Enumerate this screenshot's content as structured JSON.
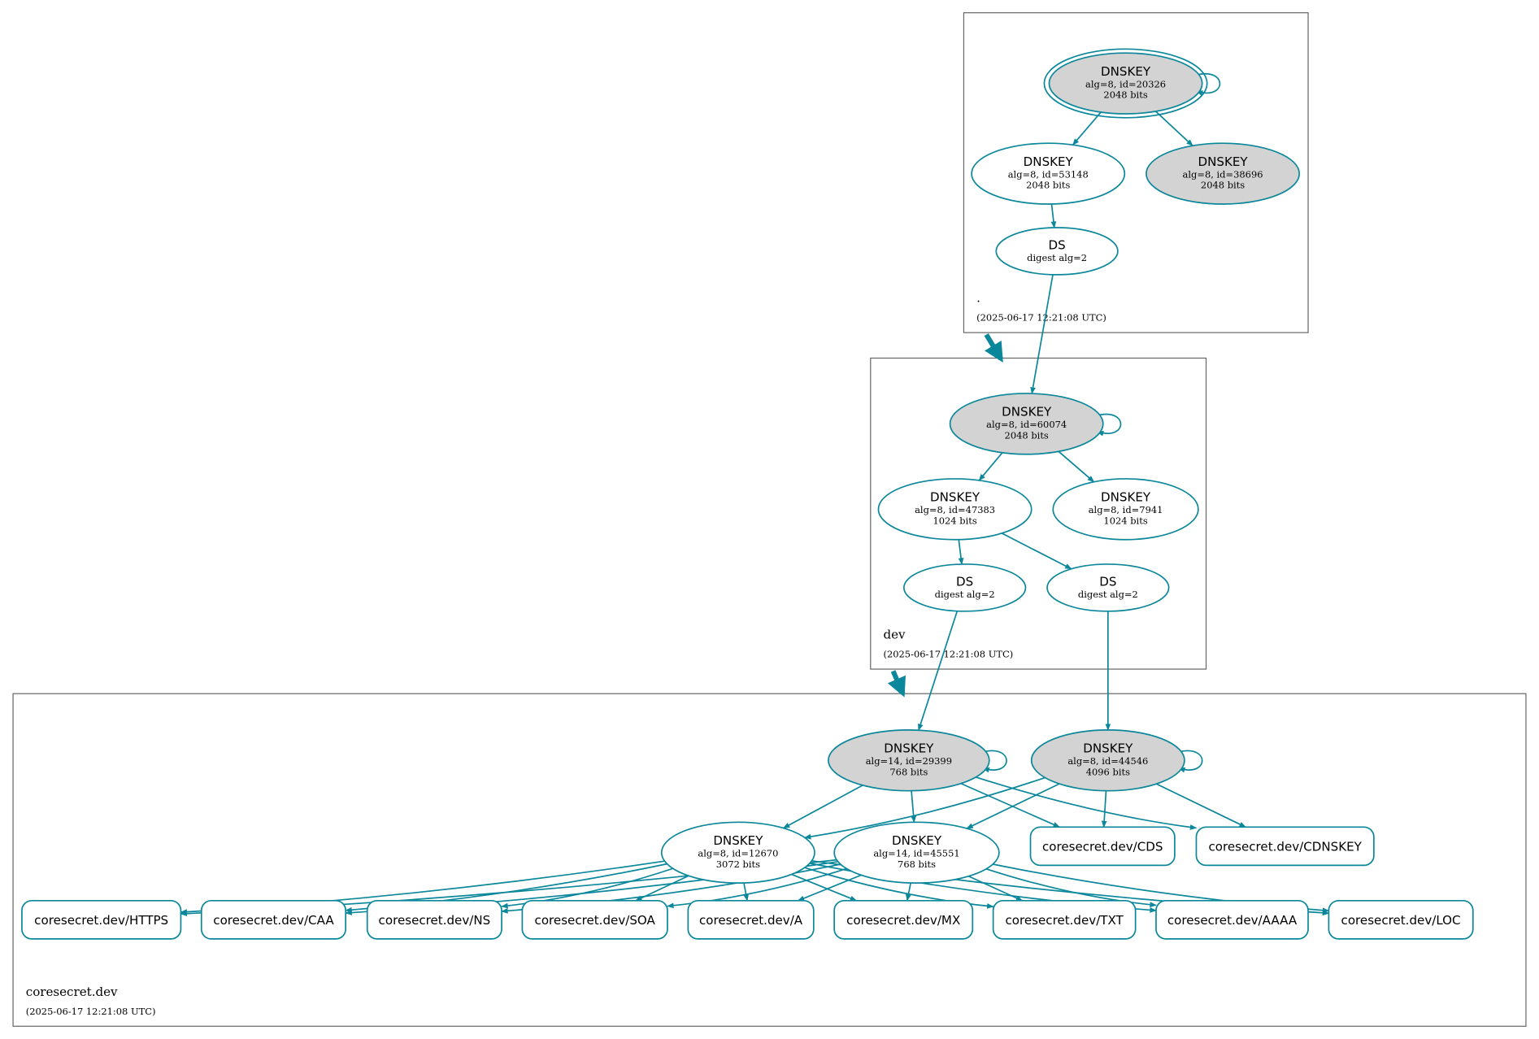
{
  "colors": {
    "edge": "#0a879a",
    "ksk_fill": "#d3d3d3",
    "zsk_fill": "#ffffff",
    "zone_border": "#666666"
  },
  "zones": [
    {
      "id": "root",
      "name": ".",
      "timestamp": "(2025-06-17 12:21:08 UTC)"
    },
    {
      "id": "dev",
      "name": "dev",
      "timestamp": "(2025-06-17 12:21:08 UTC)"
    },
    {
      "id": "coresecret",
      "name": "coresecret.dev",
      "timestamp": "(2025-06-17 12:21:08 UTC)"
    }
  ],
  "nodes": [
    {
      "id": "k20326",
      "zone": "root",
      "type": "DNSKEY",
      "lines": [
        "alg=8, id=20326",
        "2048 bits"
      ],
      "filled": true,
      "trust_anchor": true
    },
    {
      "id": "k53148",
      "zone": "root",
      "type": "DNSKEY",
      "lines": [
        "alg=8, id=53148",
        "2048 bits"
      ],
      "filled": false
    },
    {
      "id": "k38696",
      "zone": "root",
      "type": "DNSKEY",
      "lines": [
        "alg=8, id=38696",
        "2048 bits"
      ],
      "filled": true
    },
    {
      "id": "ds_root",
      "zone": "root",
      "type": "DS",
      "lines": [
        "digest alg=2"
      ],
      "filled": false
    },
    {
      "id": "k60074",
      "zone": "dev",
      "type": "DNSKEY",
      "lines": [
        "alg=8, id=60074",
        "2048 bits"
      ],
      "filled": true
    },
    {
      "id": "k47383",
      "zone": "dev",
      "type": "DNSKEY",
      "lines": [
        "alg=8, id=47383",
        "1024 bits"
      ],
      "filled": false
    },
    {
      "id": "k7941",
      "zone": "dev",
      "type": "DNSKEY",
      "lines": [
        "alg=8, id=7941",
        "1024 bits"
      ],
      "filled": false
    },
    {
      "id": "ds_dev1",
      "zone": "dev",
      "type": "DS",
      "lines": [
        "digest alg=2"
      ],
      "filled": false
    },
    {
      "id": "ds_dev2",
      "zone": "dev",
      "type": "DS",
      "lines": [
        "digest alg=2"
      ],
      "filled": false
    },
    {
      "id": "k29399",
      "zone": "coresecret",
      "type": "DNSKEY",
      "lines": [
        "alg=14, id=29399",
        "768 bits"
      ],
      "filled": true
    },
    {
      "id": "k44546",
      "zone": "coresecret",
      "type": "DNSKEY",
      "lines": [
        "alg=8, id=44546",
        "4096 bits"
      ],
      "filled": true
    },
    {
      "id": "k12670",
      "zone": "coresecret",
      "type": "DNSKEY",
      "lines": [
        "alg=8, id=12670",
        "3072 bits"
      ],
      "filled": false
    },
    {
      "id": "k45551",
      "zone": "coresecret",
      "type": "DNSKEY",
      "lines": [
        "alg=14, id=45551",
        "768 bits"
      ],
      "filled": false
    }
  ],
  "rrsets": [
    {
      "id": "cds",
      "label": "coresecret.dev/CDS"
    },
    {
      "id": "cdnskey",
      "label": "coresecret.dev/CDNSKEY"
    },
    {
      "id": "https",
      "label": "coresecret.dev/HTTPS"
    },
    {
      "id": "caa",
      "label": "coresecret.dev/CAA"
    },
    {
      "id": "ns",
      "label": "coresecret.dev/NS"
    },
    {
      "id": "soa",
      "label": "coresecret.dev/SOA"
    },
    {
      "id": "a",
      "label": "coresecret.dev/A"
    },
    {
      "id": "mx",
      "label": "coresecret.dev/MX"
    },
    {
      "id": "txt",
      "label": "coresecret.dev/TXT"
    },
    {
      "id": "aaaa",
      "label": "coresecret.dev/AAAA"
    },
    {
      "id": "loc",
      "label": "coresecret.dev/LOC"
    }
  ],
  "delegations": [
    [
      "root",
      "dev"
    ],
    [
      "dev",
      "coresecret"
    ]
  ],
  "edges": [
    [
      "k20326",
      "k20326"
    ],
    [
      "k20326",
      "k53148"
    ],
    [
      "k20326",
      "k38696"
    ],
    [
      "k53148",
      "ds_root"
    ],
    [
      "ds_root",
      "k60074"
    ],
    [
      "k60074",
      "k60074"
    ],
    [
      "k60074",
      "k47383"
    ],
    [
      "k60074",
      "k7941"
    ],
    [
      "k47383",
      "ds_dev1"
    ],
    [
      "k47383",
      "ds_dev2"
    ],
    [
      "ds_dev1",
      "k29399"
    ],
    [
      "ds_dev2",
      "k44546"
    ],
    [
      "k29399",
      "k29399"
    ],
    [
      "k44546",
      "k44546"
    ],
    [
      "k29399",
      "k12670"
    ],
    [
      "k29399",
      "k45551"
    ],
    [
      "k29399",
      "cds"
    ],
    [
      "k29399",
      "cdnskey"
    ],
    [
      "k44546",
      "k12670"
    ],
    [
      "k44546",
      "k45551"
    ],
    [
      "k44546",
      "cds"
    ],
    [
      "k44546",
      "cdnskey"
    ],
    [
      "k12670",
      "https"
    ],
    [
      "k12670",
      "caa"
    ],
    [
      "k12670",
      "ns"
    ],
    [
      "k12670",
      "soa"
    ],
    [
      "k12670",
      "a"
    ],
    [
      "k12670",
      "mx"
    ],
    [
      "k12670",
      "txt"
    ],
    [
      "k12670",
      "aaaa"
    ],
    [
      "k12670",
      "loc"
    ],
    [
      "k45551",
      "https"
    ],
    [
      "k45551",
      "caa"
    ],
    [
      "k45551",
      "ns"
    ],
    [
      "k45551",
      "soa"
    ],
    [
      "k45551",
      "a"
    ],
    [
      "k45551",
      "mx"
    ],
    [
      "k45551",
      "txt"
    ],
    [
      "k45551",
      "aaaa"
    ],
    [
      "k45551",
      "loc"
    ]
  ]
}
